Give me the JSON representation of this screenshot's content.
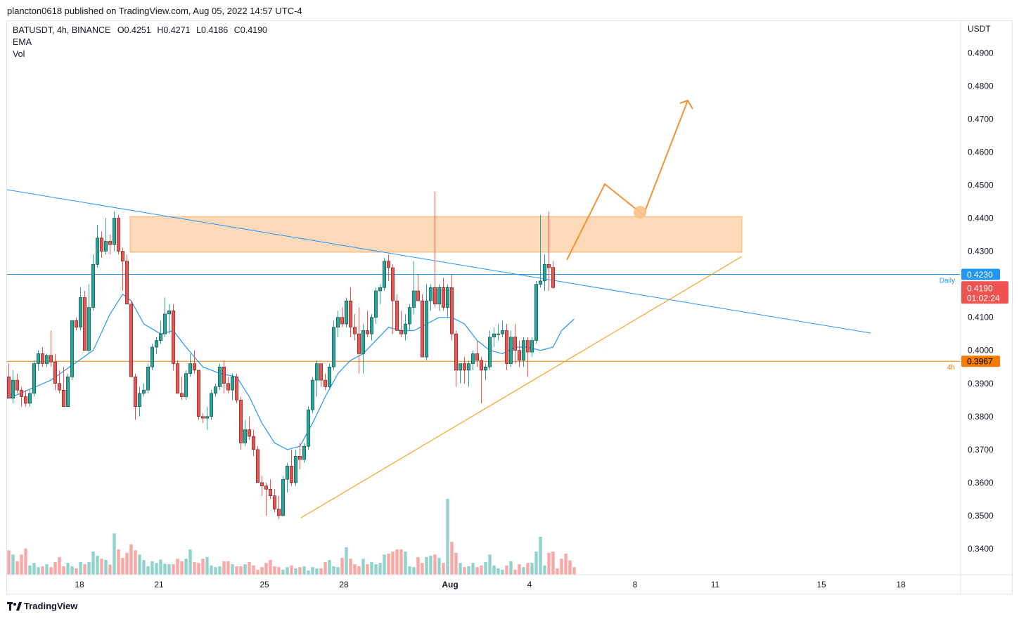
{
  "header": {
    "published_line": "plancton0618 published on TradingView.com, Aug 05, 2022 14:57 UTC-4"
  },
  "legend": {
    "symbol_line": "BATUSDT, 4h, BINANCE",
    "open": "O0.4251",
    "high": "H0.4271",
    "low": "L0.4186",
    "close": "C0.4190",
    "indicator_1": "EMA",
    "indicator_2": "Vol"
  },
  "footer": {
    "brand": "TradingView"
  },
  "chart_data": {
    "type": "candlestick",
    "y_axis_unit": "USDT",
    "ylim": [
      0.332,
      0.496
    ],
    "yticks": [
      "0.4900",
      "0.4800",
      "0.4700",
      "0.4600",
      "0.4500",
      "0.4400",
      "0.4300",
      "0.4100",
      "0.4000",
      "0.3900",
      "0.3800",
      "0.3700",
      "0.3600",
      "0.3500",
      "0.3400"
    ],
    "xticks": [
      {
        "label": "18",
        "bold": false
      },
      {
        "label": "21",
        "bold": false
      },
      {
        "label": "25",
        "bold": false
      },
      {
        "label": "28",
        "bold": false
      },
      {
        "label": "Aug",
        "bold": true
      },
      {
        "label": "4",
        "bold": false
      },
      {
        "label": "8",
        "bold": false
      },
      {
        "label": "11",
        "bold": false
      },
      {
        "label": "15",
        "bold": false
      },
      {
        "label": "18",
        "bold": false
      }
    ],
    "price_labels": [
      {
        "value": 0.423,
        "text": "0.4230",
        "tag": "Daily",
        "color": "#2196f3"
      },
      {
        "value": 0.419,
        "text": "0.4190",
        "countdown": "01:02:24",
        "color": "#ef5350"
      },
      {
        "value": 0.3967,
        "text": "0.3967",
        "tag": "4h",
        "color": "#f57c00"
      }
    ],
    "zone": {
      "from": 0.4297,
      "to": 0.4405,
      "color": "#f9c08a"
    },
    "colors": {
      "up": "#26a69a",
      "down": "#ef5350",
      "ema": "#2196f3",
      "trend": "#f7a325",
      "projection": "#f09433"
    },
    "candles": [
      {
        "o": 0.392,
        "h": 0.396,
        "l": 0.3855,
        "c": 0.3855
      },
      {
        "o": 0.3855,
        "h": 0.394,
        "l": 0.384,
        "c": 0.391
      },
      {
        "o": 0.391,
        "h": 0.393,
        "l": 0.387,
        "c": 0.388
      },
      {
        "o": 0.388,
        "h": 0.389,
        "l": 0.383,
        "c": 0.386
      },
      {
        "o": 0.386,
        "h": 0.388,
        "l": 0.383,
        "c": 0.384
      },
      {
        "o": 0.384,
        "h": 0.388,
        "l": 0.383,
        "c": 0.387
      },
      {
        "o": 0.387,
        "h": 0.397,
        "l": 0.386,
        "c": 0.396
      },
      {
        "o": 0.396,
        "h": 0.4,
        "l": 0.394,
        "c": 0.399
      },
      {
        "o": 0.399,
        "h": 0.401,
        "l": 0.395,
        "c": 0.396
      },
      {
        "o": 0.396,
        "h": 0.399,
        "l": 0.395,
        "c": 0.3985
      },
      {
        "o": 0.3985,
        "h": 0.406,
        "l": 0.395,
        "c": 0.3965
      },
      {
        "o": 0.3965,
        "h": 0.399,
        "l": 0.388,
        "c": 0.39
      },
      {
        "o": 0.39,
        "h": 0.394,
        "l": 0.387,
        "c": 0.388
      },
      {
        "o": 0.388,
        "h": 0.395,
        "l": 0.383,
        "c": 0.383
      },
      {
        "o": 0.383,
        "h": 0.393,
        "l": 0.383,
        "c": 0.392
      },
      {
        "o": 0.392,
        "h": 0.409,
        "l": 0.391,
        "c": 0.409
      },
      {
        "o": 0.409,
        "h": 0.41,
        "l": 0.406,
        "c": 0.407
      },
      {
        "o": 0.407,
        "h": 0.419,
        "l": 0.406,
        "c": 0.416
      },
      {
        "o": 0.416,
        "h": 0.418,
        "l": 0.4,
        "c": 0.4
      },
      {
        "o": 0.4,
        "h": 0.42,
        "l": 0.399,
        "c": 0.413
      },
      {
        "o": 0.413,
        "h": 0.429,
        "l": 0.412,
        "c": 0.426
      },
      {
        "o": 0.426,
        "h": 0.438,
        "l": 0.425,
        "c": 0.434
      },
      {
        "o": 0.434,
        "h": 0.436,
        "l": 0.428,
        "c": 0.43
      },
      {
        "o": 0.43,
        "h": 0.44,
        "l": 0.429,
        "c": 0.433
      },
      {
        "o": 0.433,
        "h": 0.435,
        "l": 0.429,
        "c": 0.432
      },
      {
        "o": 0.432,
        "h": 0.442,
        "l": 0.43,
        "c": 0.44
      },
      {
        "o": 0.44,
        "h": 0.441,
        "l": 0.429,
        "c": 0.43
      },
      {
        "o": 0.43,
        "h": 0.431,
        "l": 0.418,
        "c": 0.427
      },
      {
        "o": 0.427,
        "h": 0.429,
        "l": 0.414,
        "c": 0.414
      },
      {
        "o": 0.414,
        "h": 0.415,
        "l": 0.392,
        "c": 0.392
      },
      {
        "o": 0.392,
        "h": 0.393,
        "l": 0.379,
        "c": 0.383
      },
      {
        "o": 0.383,
        "h": 0.389,
        "l": 0.38,
        "c": 0.387
      },
      {
        "o": 0.387,
        "h": 0.39,
        "l": 0.386,
        "c": 0.388
      },
      {
        "o": 0.388,
        "h": 0.396,
        "l": 0.387,
        "c": 0.395
      },
      {
        "o": 0.395,
        "h": 0.402,
        "l": 0.394,
        "c": 0.401
      },
      {
        "o": 0.401,
        "h": 0.404,
        "l": 0.399,
        "c": 0.403
      },
      {
        "o": 0.403,
        "h": 0.409,
        "l": 0.402,
        "c": 0.405
      },
      {
        "o": 0.405,
        "h": 0.416,
        "l": 0.404,
        "c": 0.411
      },
      {
        "o": 0.411,
        "h": 0.414,
        "l": 0.405,
        "c": 0.412
      },
      {
        "o": 0.412,
        "h": 0.414,
        "l": 0.394,
        "c": 0.396
      },
      {
        "o": 0.396,
        "h": 0.397,
        "l": 0.387,
        "c": 0.387
      },
      {
        "o": 0.387,
        "h": 0.392,
        "l": 0.385,
        "c": 0.386
      },
      {
        "o": 0.386,
        "h": 0.394,
        "l": 0.385,
        "c": 0.393
      },
      {
        "o": 0.393,
        "h": 0.399,
        "l": 0.392,
        "c": 0.396
      },
      {
        "o": 0.396,
        "h": 0.4,
        "l": 0.393,
        "c": 0.394
      },
      {
        "o": 0.394,
        "h": 0.394,
        "l": 0.379,
        "c": 0.38
      },
      {
        "o": 0.38,
        "h": 0.381,
        "l": 0.378,
        "c": 0.3795
      },
      {
        "o": 0.3795,
        "h": 0.383,
        "l": 0.376,
        "c": 0.38
      },
      {
        "o": 0.38,
        "h": 0.388,
        "l": 0.379,
        "c": 0.387
      },
      {
        "o": 0.387,
        "h": 0.39,
        "l": 0.386,
        "c": 0.389
      },
      {
        "o": 0.389,
        "h": 0.396,
        "l": 0.388,
        "c": 0.395
      },
      {
        "o": 0.395,
        "h": 0.397,
        "l": 0.387,
        "c": 0.39
      },
      {
        "o": 0.39,
        "h": 0.392,
        "l": 0.387,
        "c": 0.388
      },
      {
        "o": 0.388,
        "h": 0.393,
        "l": 0.385,
        "c": 0.392
      },
      {
        "o": 0.392,
        "h": 0.393,
        "l": 0.384,
        "c": 0.385
      },
      {
        "o": 0.385,
        "h": 0.386,
        "l": 0.37,
        "c": 0.372
      },
      {
        "o": 0.372,
        "h": 0.379,
        "l": 0.371,
        "c": 0.376
      },
      {
        "o": 0.376,
        "h": 0.38,
        "l": 0.373,
        "c": 0.374
      },
      {
        "o": 0.374,
        "h": 0.376,
        "l": 0.368,
        "c": 0.37
      },
      {
        "o": 0.37,
        "h": 0.371,
        "l": 0.36,
        "c": 0.36
      },
      {
        "o": 0.36,
        "h": 0.362,
        "l": 0.356,
        "c": 0.359
      },
      {
        "o": 0.359,
        "h": 0.36,
        "l": 0.35,
        "c": 0.358
      },
      {
        "o": 0.358,
        "h": 0.361,
        "l": 0.355,
        "c": 0.356
      },
      {
        "o": 0.356,
        "h": 0.358,
        "l": 0.351,
        "c": 0.352
      },
      {
        "o": 0.352,
        "h": 0.356,
        "l": 0.349,
        "c": 0.35
      },
      {
        "o": 0.35,
        "h": 0.362,
        "l": 0.35,
        "c": 0.361
      },
      {
        "o": 0.361,
        "h": 0.366,
        "l": 0.357,
        "c": 0.365
      },
      {
        "o": 0.365,
        "h": 0.37,
        "l": 0.359,
        "c": 0.36
      },
      {
        "o": 0.36,
        "h": 0.37,
        "l": 0.359,
        "c": 0.368
      },
      {
        "o": 0.368,
        "h": 0.372,
        "l": 0.364,
        "c": 0.367
      },
      {
        "o": 0.367,
        "h": 0.372,
        "l": 0.366,
        "c": 0.371
      },
      {
        "o": 0.371,
        "h": 0.383,
        "l": 0.37,
        "c": 0.382
      },
      {
        "o": 0.382,
        "h": 0.392,
        "l": 0.381,
        "c": 0.391
      },
      {
        "o": 0.391,
        "h": 0.397,
        "l": 0.386,
        "c": 0.396
      },
      {
        "o": 0.396,
        "h": 0.396,
        "l": 0.389,
        "c": 0.391
      },
      {
        "o": 0.391,
        "h": 0.393,
        "l": 0.388,
        "c": 0.389
      },
      {
        "o": 0.389,
        "h": 0.396,
        "l": 0.388,
        "c": 0.395
      },
      {
        "o": 0.395,
        "h": 0.409,
        "l": 0.394,
        "c": 0.407
      },
      {
        "o": 0.407,
        "h": 0.412,
        "l": 0.404,
        "c": 0.41
      },
      {
        "o": 0.41,
        "h": 0.413,
        "l": 0.407,
        "c": 0.408
      },
      {
        "o": 0.408,
        "h": 0.416,
        "l": 0.407,
        "c": 0.415
      },
      {
        "o": 0.415,
        "h": 0.419,
        "l": 0.404,
        "c": 0.407
      },
      {
        "o": 0.407,
        "h": 0.411,
        "l": 0.403,
        "c": 0.405
      },
      {
        "o": 0.405,
        "h": 0.413,
        "l": 0.393,
        "c": 0.399
      },
      {
        "o": 0.399,
        "h": 0.408,
        "l": 0.393,
        "c": 0.406
      },
      {
        "o": 0.406,
        "h": 0.412,
        "l": 0.404,
        "c": 0.405
      },
      {
        "o": 0.405,
        "h": 0.411,
        "l": 0.403,
        "c": 0.41
      },
      {
        "o": 0.41,
        "h": 0.419,
        "l": 0.408,
        "c": 0.418
      },
      {
        "o": 0.418,
        "h": 0.42,
        "l": 0.414,
        "c": 0.419
      },
      {
        "o": 0.419,
        "h": 0.428,
        "l": 0.418,
        "c": 0.427
      },
      {
        "o": 0.427,
        "h": 0.429,
        "l": 0.421,
        "c": 0.425
      },
      {
        "o": 0.425,
        "h": 0.426,
        "l": 0.405,
        "c": 0.415
      },
      {
        "o": 0.415,
        "h": 0.417,
        "l": 0.406,
        "c": 0.406
      },
      {
        "o": 0.406,
        "h": 0.412,
        "l": 0.404,
        "c": 0.405
      },
      {
        "o": 0.405,
        "h": 0.411,
        "l": 0.403,
        "c": 0.408
      },
      {
        "o": 0.408,
        "h": 0.414,
        "l": 0.406,
        "c": 0.413
      },
      {
        "o": 0.413,
        "h": 0.427,
        "l": 0.411,
        "c": 0.418
      },
      {
        "o": 0.418,
        "h": 0.423,
        "l": 0.415,
        "c": 0.415
      },
      {
        "o": 0.415,
        "h": 0.417,
        "l": 0.398,
        "c": 0.398
      },
      {
        "o": 0.398,
        "h": 0.42,
        "l": 0.397,
        "c": 0.415
      },
      {
        "o": 0.415,
        "h": 0.42,
        "l": 0.412,
        "c": 0.419
      },
      {
        "o": 0.419,
        "h": 0.448,
        "l": 0.413,
        "c": 0.414
      },
      {
        "o": 0.414,
        "h": 0.42,
        "l": 0.412,
        "c": 0.419
      },
      {
        "o": 0.419,
        "h": 0.422,
        "l": 0.412,
        "c": 0.413
      },
      {
        "o": 0.413,
        "h": 0.42,
        "l": 0.41,
        "c": 0.419
      },
      {
        "o": 0.419,
        "h": 0.423,
        "l": 0.403,
        "c": 0.405
      },
      {
        "o": 0.405,
        "h": 0.406,
        "l": 0.389,
        "c": 0.394
      },
      {
        "o": 0.394,
        "h": 0.396,
        "l": 0.39,
        "c": 0.396
      },
      {
        "o": 0.396,
        "h": 0.398,
        "l": 0.39,
        "c": 0.394
      },
      {
        "o": 0.394,
        "h": 0.397,
        "l": 0.389,
        "c": 0.396
      },
      {
        "o": 0.396,
        "h": 0.4,
        "l": 0.394,
        "c": 0.399
      },
      {
        "o": 0.399,
        "h": 0.403,
        "l": 0.395,
        "c": 0.397
      },
      {
        "o": 0.397,
        "h": 0.398,
        "l": 0.384,
        "c": 0.394
      },
      {
        "o": 0.394,
        "h": 0.396,
        "l": 0.391,
        "c": 0.395
      },
      {
        "o": 0.395,
        "h": 0.406,
        "l": 0.394,
        "c": 0.404
      },
      {
        "o": 0.404,
        "h": 0.407,
        "l": 0.401,
        "c": 0.405
      },
      {
        "o": 0.405,
        "h": 0.408,
        "l": 0.403,
        "c": 0.405
      },
      {
        "o": 0.405,
        "h": 0.409,
        "l": 0.404,
        "c": 0.406
      },
      {
        "o": 0.406,
        "h": 0.408,
        "l": 0.394,
        "c": 0.396
      },
      {
        "o": 0.396,
        "h": 0.406,
        "l": 0.395,
        "c": 0.404
      },
      {
        "o": 0.404,
        "h": 0.408,
        "l": 0.396,
        "c": 0.4
      },
      {
        "o": 0.4,
        "h": 0.403,
        "l": 0.395,
        "c": 0.397
      },
      {
        "o": 0.397,
        "h": 0.404,
        "l": 0.395,
        "c": 0.403
      },
      {
        "o": 0.403,
        "h": 0.404,
        "l": 0.392,
        "c": 0.3995
      },
      {
        "o": 0.3995,
        "h": 0.404,
        "l": 0.398,
        "c": 0.403
      },
      {
        "o": 0.403,
        "h": 0.421,
        "l": 0.402,
        "c": 0.42
      },
      {
        "o": 0.42,
        "h": 0.441,
        "l": 0.419,
        "c": 0.421
      },
      {
        "o": 0.421,
        "h": 0.429,
        "l": 0.418,
        "c": 0.426
      },
      {
        "o": 0.426,
        "h": 0.442,
        "l": 0.418,
        "c": 0.425
      },
      {
        "o": 0.4251,
        "h": 0.4271,
        "l": 0.4186,
        "c": 0.419
      }
    ],
    "volumes": [
      58,
      48,
      32,
      48,
      62,
      22,
      28,
      18,
      20,
      25,
      18,
      30,
      42,
      20,
      28,
      20,
      15,
      30,
      25,
      30,
      55,
      45,
      38,
      35,
      24,
      98,
      60,
      40,
      52,
      72,
      58,
      48,
      35,
      20,
      32,
      28,
      36,
      26,
      25,
      25,
      38,
      32,
      38,
      60,
      30,
      28,
      38,
      42,
      22,
      18,
      20,
      32,
      32,
      25,
      20,
      20,
      25,
      30,
      22,
      12,
      18,
      28,
      35,
      20,
      18,
      12,
      18,
      22,
      15,
      18,
      20,
      10,
      18,
      15,
      15,
      30,
      35,
      20,
      18,
      40,
      65,
      38,
      25,
      20,
      38,
      25,
      30,
      25,
      28,
      48,
      50,
      55,
      60,
      60,
      55,
      20,
      18,
      42,
      28,
      42,
      45,
      48,
      40,
      28,
      180,
      78,
      52,
      28,
      18,
      20,
      28,
      18,
      22,
      30,
      48,
      22,
      15,
      12,
      22,
      32,
      12,
      25,
      18,
      28,
      28,
      55,
      90,
      22,
      52,
      55,
      15,
      38,
      50,
      34,
      18
    ],
    "ema": [
      {
        "i": 0,
        "v": 0.3855
      },
      {
        "i": 10,
        "v": 0.391
      },
      {
        "i": 20,
        "v": 0.4
      },
      {
        "i": 24,
        "v": 0.411
      },
      {
        "i": 27,
        "v": 0.417
      },
      {
        "i": 29,
        "v": 0.415
      },
      {
        "i": 32,
        "v": 0.408
      },
      {
        "i": 36,
        "v": 0.405
      },
      {
        "i": 39,
        "v": 0.406
      },
      {
        "i": 42,
        "v": 0.401
      },
      {
        "i": 46,
        "v": 0.395
      },
      {
        "i": 50,
        "v": 0.393
      },
      {
        "i": 54,
        "v": 0.392
      },
      {
        "i": 57,
        "v": 0.386
      },
      {
        "i": 60,
        "v": 0.378
      },
      {
        "i": 63,
        "v": 0.372
      },
      {
        "i": 66,
        "v": 0.37
      },
      {
        "i": 69,
        "v": 0.371
      },
      {
        "i": 72,
        "v": 0.378
      },
      {
        "i": 75,
        "v": 0.386
      },
      {
        "i": 78,
        "v": 0.393
      },
      {
        "i": 81,
        "v": 0.397
      },
      {
        "i": 84,
        "v": 0.399
      },
      {
        "i": 87,
        "v": 0.403
      },
      {
        "i": 90,
        "v": 0.407
      },
      {
        "i": 93,
        "v": 0.406
      },
      {
        "i": 96,
        "v": 0.406
      },
      {
        "i": 99,
        "v": 0.408
      },
      {
        "i": 102,
        "v": 0.41
      },
      {
        "i": 105,
        "v": 0.41
      },
      {
        "i": 108,
        "v": 0.408
      },
      {
        "i": 111,
        "v": 0.403
      },
      {
        "i": 114,
        "v": 0.4
      },
      {
        "i": 117,
        "v": 0.399
      },
      {
        "i": 120,
        "v": 0.401
      },
      {
        "i": 123,
        "v": 0.401
      },
      {
        "i": 126,
        "v": 0.4
      },
      {
        "i": 129,
        "v": 0.401
      },
      {
        "i": 131,
        "v": 0.406
      },
      {
        "i": 134,
        "v": 0.4095
      }
    ]
  }
}
